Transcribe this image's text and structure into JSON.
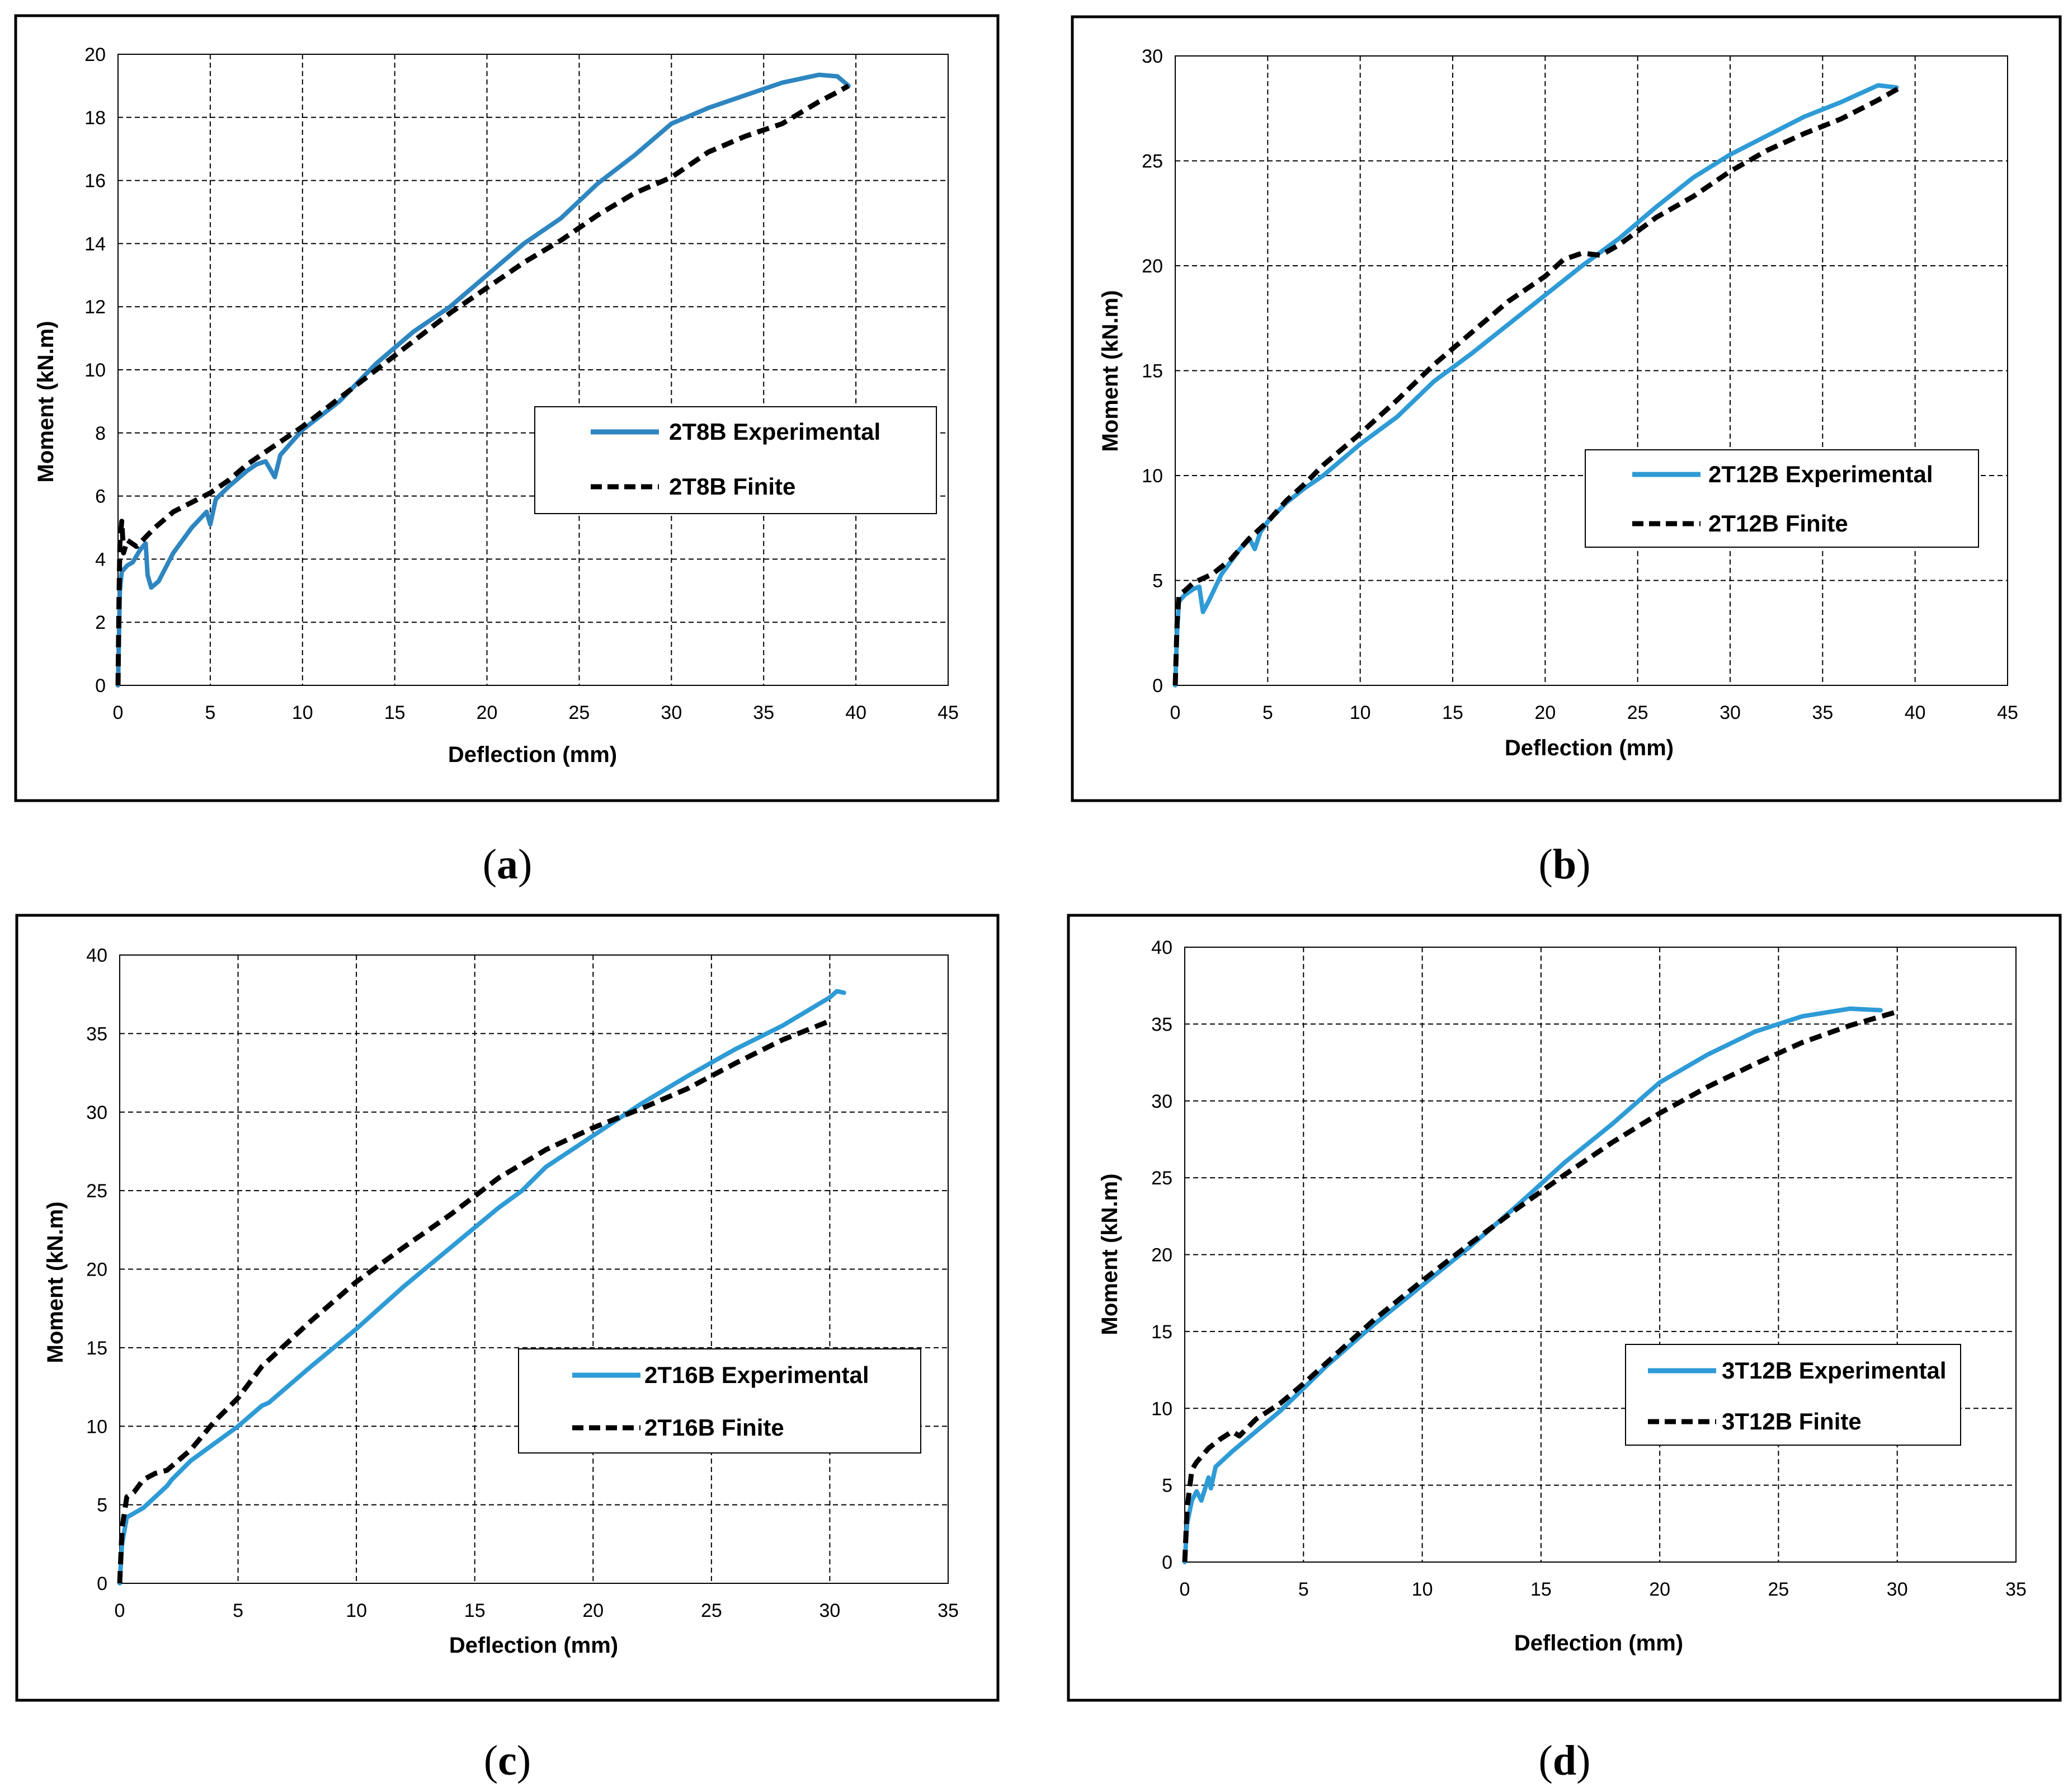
{
  "chart_data": [
    {
      "type": "line",
      "panel_label": "a",
      "xlabel": "Deflection (mm)",
      "ylabel": "Moment (kN.m)",
      "xlim": [
        0,
        45
      ],
      "ylim": [
        0,
        20
      ],
      "xticks": [
        0,
        5,
        10,
        15,
        20,
        25,
        30,
        35,
        40,
        45
      ],
      "yticks": [
        0,
        2,
        4,
        6,
        8,
        10,
        12,
        14,
        16,
        18,
        20
      ],
      "grid": true,
      "legend_position": "center-right",
      "series": [
        {
          "name": "2T8B Experimental",
          "color": "#2E86C1",
          "style": "solid",
          "points": [
            [
              0,
              0
            ],
            [
              0.05,
              1.5
            ],
            [
              0.1,
              3.0
            ],
            [
              0.2,
              3.6
            ],
            [
              0.5,
              3.8
            ],
            [
              0.8,
              3.9
            ],
            [
              1.2,
              4.3
            ],
            [
              1.5,
              4.5
            ],
            [
              1.6,
              3.5
            ],
            [
              1.8,
              3.1
            ],
            [
              2.2,
              3.3
            ],
            [
              3,
              4.2
            ],
            [
              4,
              5.0
            ],
            [
              4.8,
              5.5
            ],
            [
              5,
              5.1
            ],
            [
              5.3,
              5.9
            ],
            [
              6,
              6.3
            ],
            [
              7,
              6.8
            ],
            [
              7.5,
              7.0
            ],
            [
              8,
              7.1
            ],
            [
              8.5,
              6.6
            ],
            [
              8.8,
              7.3
            ],
            [
              10,
              8.1
            ],
            [
              12,
              9.0
            ],
            [
              14,
              10.2
            ],
            [
              16,
              11.2
            ],
            [
              18,
              12.0
            ],
            [
              20,
              13.0
            ],
            [
              22,
              14.0
            ],
            [
              24,
              14.8
            ],
            [
              26,
              15.9
            ],
            [
              28,
              16.8
            ],
            [
              30,
              17.8
            ],
            [
              32,
              18.3
            ],
            [
              34,
              18.7
            ],
            [
              36,
              19.1
            ],
            [
              38,
              19.35
            ],
            [
              39,
              19.3
            ],
            [
              39.6,
              19.0
            ]
          ]
        },
        {
          "name": "2T8B Finite",
          "color": "#000000",
          "style": "dashed",
          "points": [
            [
              0,
              0
            ],
            [
              0.05,
              2.5
            ],
            [
              0.1,
              4.5
            ],
            [
              0.2,
              5.2
            ],
            [
              0.3,
              4.2
            ],
            [
              0.5,
              4.6
            ],
            [
              1,
              4.4
            ],
            [
              1.5,
              4.7
            ],
            [
              2,
              5.0
            ],
            [
              3,
              5.5
            ],
            [
              4,
              5.8
            ],
            [
              5,
              6.1
            ],
            [
              6,
              6.5
            ],
            [
              7,
              7.0
            ],
            [
              8,
              7.4
            ],
            [
              9,
              7.8
            ],
            [
              10,
              8.2
            ],
            [
              12,
              9.1
            ],
            [
              14,
              10.0
            ],
            [
              16,
              10.9
            ],
            [
              18,
              11.8
            ],
            [
              20,
              12.6
            ],
            [
              22,
              13.4
            ],
            [
              24,
              14.1
            ],
            [
              26,
              14.9
            ],
            [
              28,
              15.6
            ],
            [
              30,
              16.1
            ],
            [
              32,
              16.9
            ],
            [
              34,
              17.4
            ],
            [
              36,
              17.8
            ],
            [
              38,
              18.5
            ],
            [
              39,
              18.8
            ],
            [
              39.6,
              19.0
            ]
          ]
        }
      ]
    },
    {
      "type": "line",
      "panel_label": "b",
      "xlabel": "Deflection (mm)",
      "ylabel": "Moment (kN.m)",
      "xlim": [
        0,
        45
      ],
      "ylim": [
        0,
        30
      ],
      "xticks": [
        0,
        5,
        10,
        15,
        20,
        25,
        30,
        35,
        40,
        45
      ],
      "yticks": [
        0,
        5,
        10,
        15,
        20,
        25,
        30
      ],
      "grid": true,
      "legend_position": "bottom-right",
      "series": [
        {
          "name": "2T12B Experimental",
          "color": "#2E9BD6",
          "style": "solid",
          "points": [
            [
              0,
              0
            ],
            [
              0.1,
              2.5
            ],
            [
              0.2,
              4.0
            ],
            [
              0.5,
              4.3
            ],
            [
              1.0,
              4.6
            ],
            [
              1.3,
              4.7
            ],
            [
              1.5,
              3.5
            ],
            [
              1.8,
              4.0
            ],
            [
              2.5,
              5.3
            ],
            [
              3.5,
              6.5
            ],
            [
              4,
              7.0
            ],
            [
              4.3,
              6.5
            ],
            [
              4.6,
              7.3
            ],
            [
              5,
              7.8
            ],
            [
              6,
              8.7
            ],
            [
              7,
              9.4
            ],
            [
              7.5,
              9.7
            ],
            [
              8,
              10.0
            ],
            [
              10,
              11.5
            ],
            [
              12,
              12.8
            ],
            [
              14,
              14.5
            ],
            [
              16,
              15.8
            ],
            [
              18,
              17.2
            ],
            [
              20,
              18.6
            ],
            [
              22,
              20.0
            ],
            [
              24,
              21.3
            ],
            [
              26,
              22.8
            ],
            [
              28,
              24.2
            ],
            [
              30,
              25.3
            ],
            [
              32,
              26.2
            ],
            [
              34,
              27.1
            ],
            [
              36,
              27.8
            ],
            [
              38,
              28.6
            ],
            [
              39,
              28.5
            ]
          ]
        },
        {
          "name": "2T12B Finite",
          "color": "#000000",
          "style": "dashed",
          "points": [
            [
              0,
              0
            ],
            [
              0.1,
              3.0
            ],
            [
              0.2,
              4.3
            ],
            [
              0.5,
              4.5
            ],
            [
              1,
              4.9
            ],
            [
              2,
              5.3
            ],
            [
              3,
              6.0
            ],
            [
              4,
              7.0
            ],
            [
              5,
              7.8
            ],
            [
              6,
              8.8
            ],
            [
              7,
              9.6
            ],
            [
              8,
              10.5
            ],
            [
              10,
              12.0
            ],
            [
              12,
              13.6
            ],
            [
              14,
              15.3
            ],
            [
              16,
              16.8
            ],
            [
              18,
              18.3
            ],
            [
              20,
              19.5
            ],
            [
              21,
              20.3
            ],
            [
              22,
              20.6
            ],
            [
              23,
              20.5
            ],
            [
              24,
              21.0
            ],
            [
              26,
              22.3
            ],
            [
              28,
              23.3
            ],
            [
              30,
              24.5
            ],
            [
              32,
              25.5
            ],
            [
              34,
              26.3
            ],
            [
              36,
              27.0
            ],
            [
              38,
              27.9
            ],
            [
              39.2,
              28.5
            ]
          ]
        }
      ]
    },
    {
      "type": "line",
      "panel_label": "c",
      "xlabel": "Deflection (mm)",
      "ylabel": "Moment  (kN.m)",
      "xlim": [
        0,
        35
      ],
      "ylim": [
        0,
        40
      ],
      "xticks": [
        0,
        5,
        10,
        15,
        20,
        25,
        30,
        35
      ],
      "yticks": [
        0,
        5,
        10,
        15,
        20,
        25,
        30,
        35,
        40
      ],
      "grid": true,
      "legend_position": "bottom-right",
      "series": [
        {
          "name": "2T16B Experimental",
          "color": "#2E9BD6",
          "style": "solid",
          "points": [
            [
              0,
              0
            ],
            [
              0.1,
              2.5
            ],
            [
              0.3,
              4.2
            ],
            [
              1,
              4.8
            ],
            [
              2,
              6.2
            ],
            [
              2.2,
              6.6
            ],
            [
              3,
              7.8
            ],
            [
              5,
              10.0
            ],
            [
              6,
              11.3
            ],
            [
              6.3,
              11.5
            ],
            [
              8,
              13.7
            ],
            [
              10,
              16.2
            ],
            [
              12,
              18.9
            ],
            [
              14,
              21.4
            ],
            [
              16,
              23.9
            ],
            [
              17,
              25.0
            ],
            [
              18,
              26.5
            ],
            [
              20,
              28.5
            ],
            [
              22,
              30.5
            ],
            [
              24,
              32.3
            ],
            [
              26,
              34.0
            ],
            [
              28,
              35.5
            ],
            [
              30,
              37.3
            ],
            [
              30.3,
              37.7
            ],
            [
              30.6,
              37.6
            ]
          ]
        },
        {
          "name": "2T16B Finite",
          "color": "#000000",
          "style": "dashed",
          "points": [
            [
              0,
              0
            ],
            [
              0.1,
              3.5
            ],
            [
              0.3,
              5.5
            ],
            [
              0.6,
              5.8
            ],
            [
              1,
              6.6
            ],
            [
              1.5,
              7.0
            ],
            [
              2,
              7.2
            ],
            [
              3,
              8.5
            ],
            [
              4,
              10.3
            ],
            [
              5,
              11.8
            ],
            [
              6,
              13.8
            ],
            [
              8,
              16.6
            ],
            [
              10,
              19.2
            ],
            [
              12,
              21.4
            ],
            [
              14,
              23.5
            ],
            [
              16,
              25.8
            ],
            [
              18,
              27.6
            ],
            [
              20,
              29.0
            ],
            [
              22,
              30.2
            ],
            [
              24,
              31.5
            ],
            [
              26,
              33.1
            ],
            [
              28,
              34.6
            ],
            [
              30,
              35.8
            ]
          ]
        }
      ]
    },
    {
      "type": "line",
      "panel_label": "d",
      "xlabel": "Deflection (mm)",
      "ylabel": "Moment (kN.m)",
      "xlim": [
        0,
        35
      ],
      "ylim": [
        0,
        40
      ],
      "xticks": [
        0,
        5,
        10,
        15,
        20,
        25,
        30,
        35
      ],
      "yticks": [
        0,
        5,
        10,
        15,
        20,
        25,
        30,
        35,
        40
      ],
      "grid": true,
      "legend_position": "bottom-right",
      "series": [
        {
          "name": "3T12B Experimental",
          "color": "#2E9BD6",
          "style": "solid",
          "points": [
            [
              0,
              0
            ],
            [
              0.1,
              2.5
            ],
            [
              0.3,
              4.0
            ],
            [
              0.5,
              4.6
            ],
            [
              0.7,
              4.0
            ],
            [
              1,
              5.5
            ],
            [
              1.1,
              4.8
            ],
            [
              1.3,
              6.2
            ],
            [
              2,
              7.2
            ],
            [
              3,
              8.5
            ],
            [
              4,
              9.8
            ],
            [
              5,
              11.3
            ],
            [
              6,
              12.8
            ],
            [
              8,
              15.5
            ],
            [
              10,
              18.0
            ],
            [
              12,
              20.5
            ],
            [
              14,
              23.2
            ],
            [
              16,
              26.0
            ],
            [
              18,
              28.5
            ],
            [
              20,
              31.2
            ],
            [
              22,
              33.0
            ],
            [
              24,
              34.5
            ],
            [
              26,
              35.5
            ],
            [
              28,
              36.0
            ],
            [
              29.3,
              35.9
            ]
          ]
        },
        {
          "name": "3T12B Finite",
          "color": "#000000",
          "style": "dashed",
          "points": [
            [
              0,
              0
            ],
            [
              0.1,
              3.5
            ],
            [
              0.3,
              6.0
            ],
            [
              0.5,
              6.5
            ],
            [
              1,
              7.4
            ],
            [
              1.5,
              8.0
            ],
            [
              2,
              8.5
            ],
            [
              2.3,
              8.2
            ],
            [
              3,
              9.3
            ],
            [
              4,
              10.3
            ],
            [
              5,
              11.6
            ],
            [
              6,
              13.0
            ],
            [
              8,
              15.8
            ],
            [
              10,
              18.3
            ],
            [
              12,
              20.7
            ],
            [
              14,
              23.0
            ],
            [
              16,
              25.2
            ],
            [
              18,
              27.3
            ],
            [
              20,
              29.2
            ],
            [
              22,
              30.9
            ],
            [
              24,
              32.4
            ],
            [
              26,
              33.8
            ],
            [
              28,
              34.9
            ],
            [
              30,
              35.8
            ]
          ]
        }
      ]
    }
  ]
}
